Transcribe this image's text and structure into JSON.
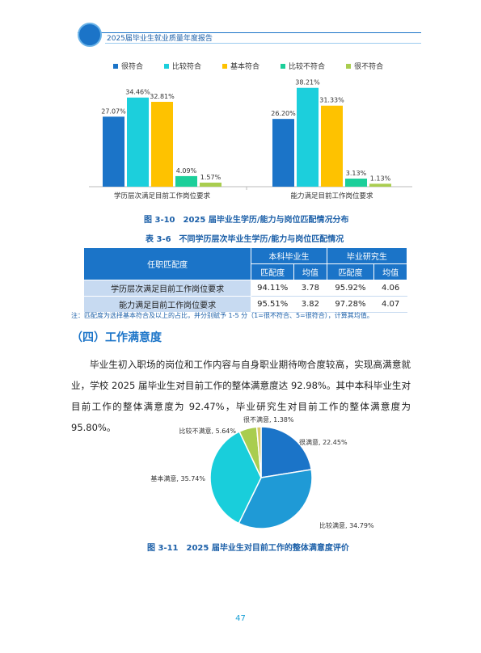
{
  "header": {
    "title": "2025届毕业生就业质量年度报告"
  },
  "figure_3_10": {
    "caption": "图 3-10　2025 届毕业生学历/能力与岗位匹配情况分布"
  },
  "chart_data": [
    {
      "type": "bar",
      "categories": [
        "学历层次满足目前工作岗位要求",
        "能力满足目前工作岗位要求"
      ],
      "series": [
        {
          "name": "很符合",
          "color": "#1b74c8",
          "values": [
            27.07,
            26.2
          ],
          "labels": [
            "27.07%",
            "26.20%"
          ]
        },
        {
          "name": "比较符合",
          "color": "#1ccfdc",
          "values": [
            34.46,
            38.21
          ],
          "labels": [
            "34.46%",
            "38.21%"
          ]
        },
        {
          "name": "基本符合",
          "color": "#fec200",
          "values": [
            32.81,
            31.33
          ],
          "labels": [
            "32.81%",
            "31.33%"
          ]
        },
        {
          "name": "比较不符合",
          "color": "#1ccf9a",
          "values": [
            4.09,
            3.13
          ],
          "labels": [
            "4.09%",
            "3.13%"
          ]
        },
        {
          "name": "很不符合",
          "color": "#a9cd4f",
          "values": [
            1.57,
            1.13
          ],
          "labels": [
            "1.57%",
            "1.13%"
          ]
        }
      ],
      "ylim": [
        0,
        40
      ],
      "legend": "top"
    },
    {
      "type": "pie",
      "slices": [
        {
          "name": "很满意",
          "value": 22.45,
          "label": "很满意, 22.45%",
          "color": "#1b74c8"
        },
        {
          "name": "比较满意",
          "value": 34.79,
          "label": "比较满意, 34.79%",
          "color": "#1f9ad6"
        },
        {
          "name": "基本满意",
          "value": 35.74,
          "label": "基本满意, 35.74%",
          "color": "#19cedb"
        },
        {
          "name": "比较不满意",
          "value": 5.64,
          "label": "比较不满意, 5.64%",
          "color": "#a9cd4f"
        },
        {
          "name": "很不满意",
          "value": 1.38,
          "label": "很不满意, 1.38%",
          "color": "#d8c96a"
        }
      ]
    }
  ],
  "table_3_6": {
    "caption": "表 3-6　不同学历层次毕业生学历/能力与岗位匹配情况",
    "header_row": "任职匹配度",
    "group1": "本科毕业生",
    "group2": "毕业研究生",
    "sub1": "匹配度",
    "sub2": "均值",
    "sub3": "匹配度",
    "sub4": "均值",
    "rows": [
      {
        "label": "学历层次满足目前工作岗位要求",
        "c1": "94.11%",
        "c2": "3.78",
        "c3": "95.92%",
        "c4": "4.06"
      },
      {
        "label": "能力满足目前工作岗位要求",
        "c1": "95.51%",
        "c2": "3.82",
        "c3": "97.28%",
        "c4": "4.07"
      }
    ],
    "note": "注：匹配度为选择基本符合及以上的占比，并分别赋予 1-5 分（1=很不符合、5=很符合），计算其均值。"
  },
  "section": {
    "title": "（四）工作满意度",
    "paragraph": "毕业生初入职场的岗位和工作内容与自身职业期待吻合度较高，实现高满意就业，学校 2025 届毕业生对目前工作的整体满意度达 92.98%。其中本科毕业生对目前工作的整体满意度为 92.47%，毕业研究生对目前工作的整体满意度为 95.80%。"
  },
  "figure_3_11": {
    "caption": "图 3-11　2025 届毕业生对目前工作的整体满意度评价"
  },
  "page_number": "47"
}
